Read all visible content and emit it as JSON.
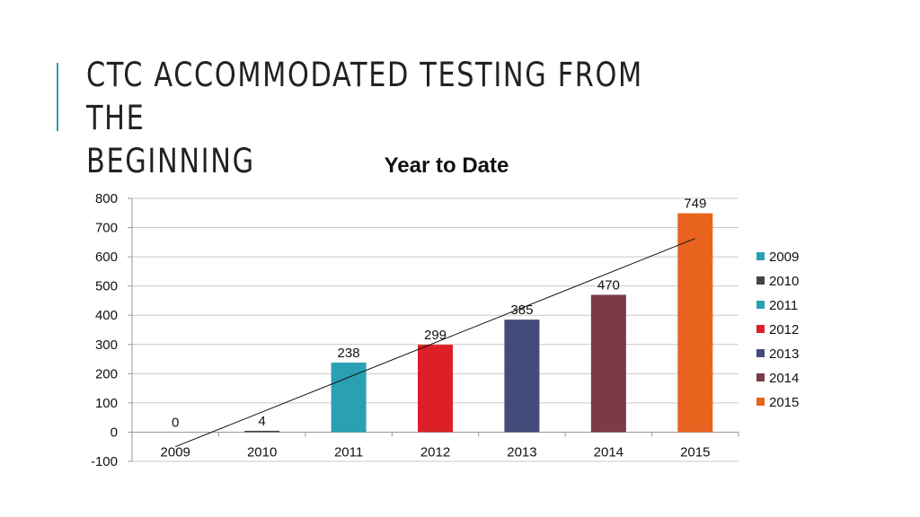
{
  "slide": {
    "title_line1": "CTC ACCOMMODATED TESTING FROM THE",
    "title_line2": "BEGINNING"
  },
  "chart_data": {
    "type": "bar",
    "title": "Year to Date",
    "categories": [
      "2009",
      "2010",
      "2011",
      "2012",
      "2013",
      "2014",
      "2015"
    ],
    "values": [
      0,
      4,
      238,
      299,
      385,
      470,
      749
    ],
    "colors": [
      "#2aa0b5",
      "#444444",
      "#2aa0b5",
      "#dd2027",
      "#444a7a",
      "#7c3a47",
      "#e8641e"
    ],
    "ylim": [
      -100,
      800
    ],
    "yticks": [
      -100,
      0,
      100,
      200,
      300,
      400,
      500,
      600,
      700,
      800
    ],
    "grid": true,
    "legend_position": "right",
    "trendline": "linear",
    "xlabel": "",
    "ylabel": ""
  }
}
